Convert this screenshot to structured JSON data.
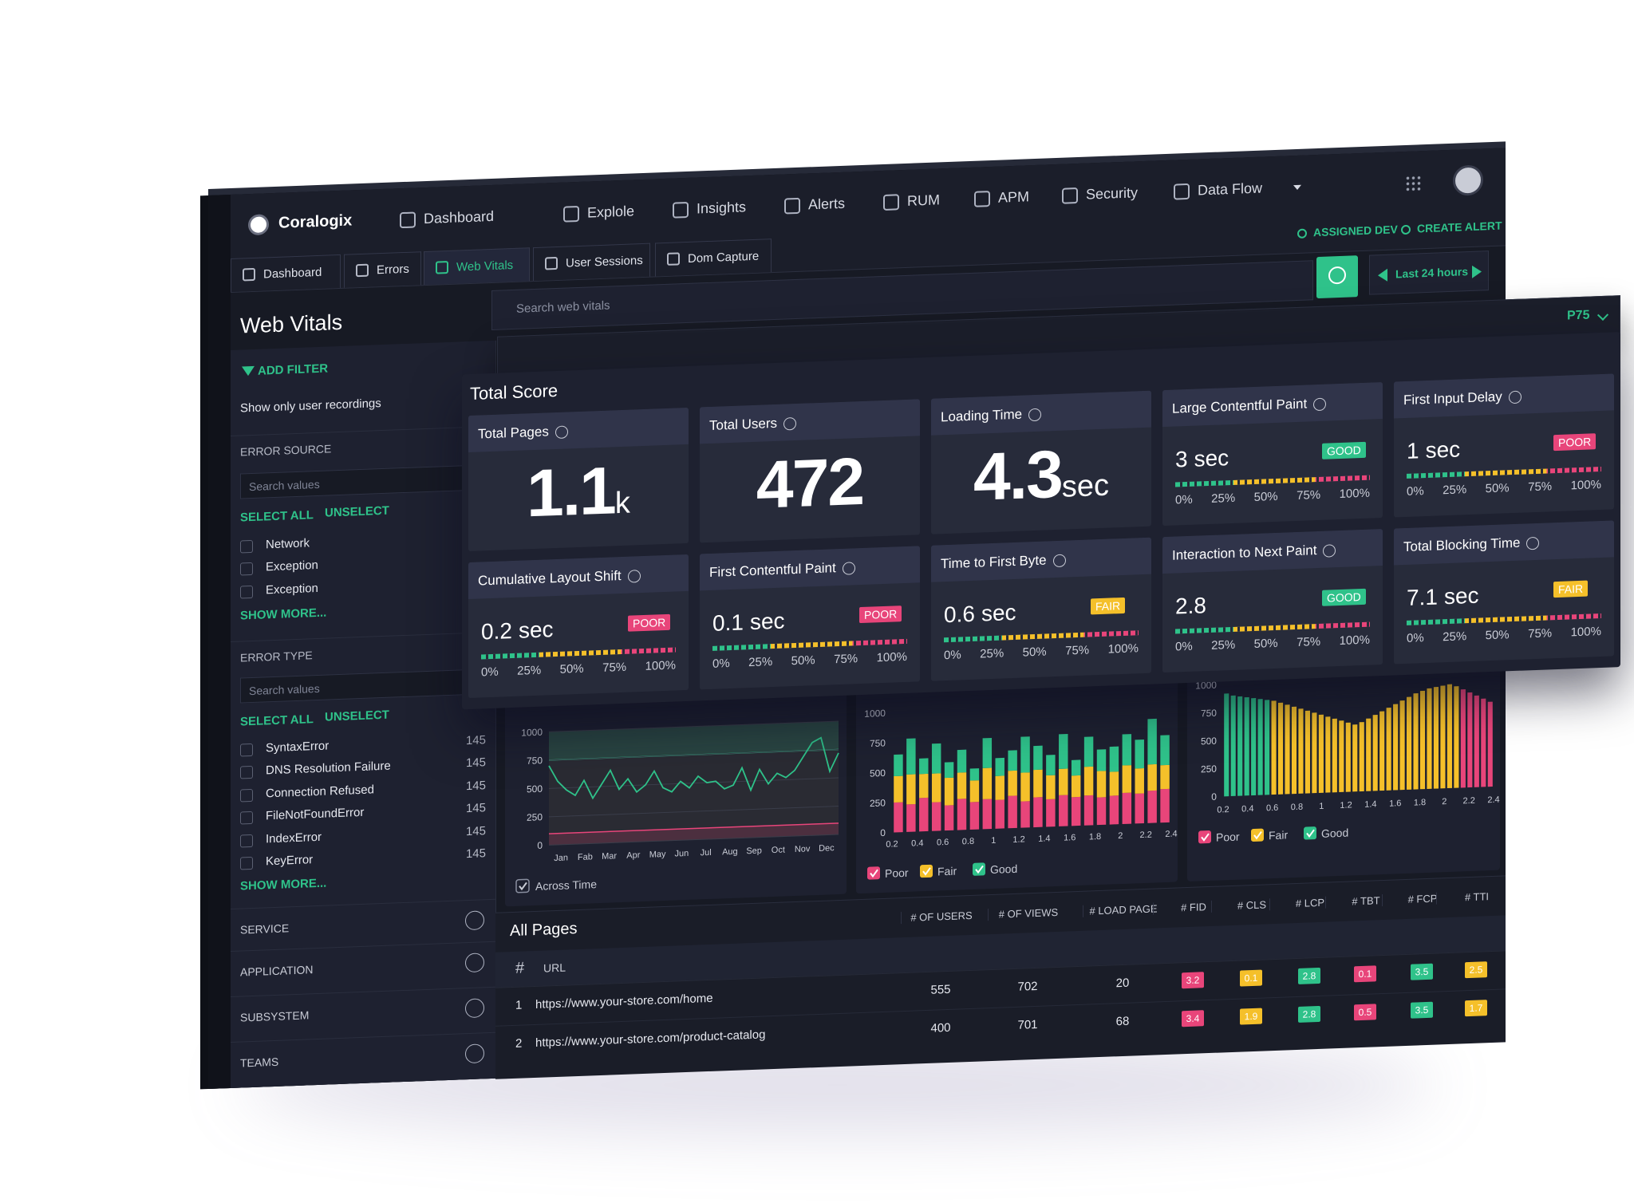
{
  "nav": {
    "brand": "Coralogix",
    "items": [
      "Dashboard",
      "Explole",
      "Insights",
      "Alerts",
      "RUM",
      "APM",
      "Security",
      "Data Flow"
    ],
    "actions": [
      "ASSIGNED DEV",
      "CREATE ALERT"
    ]
  },
  "tabs": [
    "Dashboard",
    "Errors",
    "Web Vitals",
    "User Sessions",
    "Dom Capture"
  ],
  "time_range": "Last 24 hours",
  "page_title": "Web Vitals",
  "search_placeholder": "Search web vitals",
  "percentile": "P75",
  "sidebar": {
    "add_filter": "ADD FILTER",
    "recordings": "Show only user recordings",
    "error_source": {
      "title": "ERROR SOURCE",
      "search": "Search values",
      "select_all": "SELECT ALL",
      "unselect": "UNSELECT",
      "options": [
        "Network",
        "Exception",
        "Exception"
      ],
      "show_more": "SHOW MORE..."
    },
    "error_type": {
      "title": "ERROR TYPE",
      "search": "Search values",
      "select_all": "SELECT ALL",
      "unselect": "UNSELECT",
      "options": [
        {
          "label": "SyntaxError",
          "count": 145
        },
        {
          "label": "DNS Resolution Failure",
          "count": 145
        },
        {
          "label": "Connection Refused",
          "count": 145
        },
        {
          "label": "FileNotFoundError",
          "count": 145
        },
        {
          "label": "IndexError",
          "count": 145
        },
        {
          "label": "KeyError",
          "count": 145
        }
      ],
      "show_more": "SHOW MORE..."
    },
    "sections": [
      "SERVICE",
      "APPLICATION",
      "SUBSYSTEM",
      "TEAMS"
    ]
  },
  "total_score": {
    "title": "Total Score",
    "scale": [
      "0%",
      "25%",
      "50%",
      "75%",
      "100%"
    ],
    "status_colors": {
      "GOOD": "#2fc28a",
      "FAIR": "#f5c02a",
      "POOR": "#e8457a"
    },
    "tiles": [
      {
        "title": "Total Pages",
        "value": 1.1,
        "unit": "k"
      },
      {
        "title": "Total Users",
        "value": 472
      },
      {
        "title": "Loading Time",
        "value": 4.3,
        "unit": "sec"
      },
      {
        "title": "Large Contentful Paint",
        "value": 3,
        "unit": "sec",
        "status": "GOOD"
      },
      {
        "title": "First Input Delay",
        "value": 1,
        "unit": "sec",
        "status": "POOR"
      },
      {
        "title": "Cumulative Layout Shift",
        "value": 0.2,
        "unit": "sec",
        "status": "POOR"
      },
      {
        "title": "First Contentful Paint",
        "value": 0.1,
        "unit": "sec",
        "status": "POOR"
      },
      {
        "title": "Time to First Byte",
        "value": 0.6,
        "unit": "sec",
        "status": "FAIR"
      },
      {
        "title": "Interaction to Next Paint",
        "value": 2.8,
        "status": "GOOD"
      },
      {
        "title": "Total Blocking Time",
        "value": 7.1,
        "unit": "sec",
        "status": "FAIR"
      }
    ]
  },
  "charts": [
    {
      "type": "line",
      "ylim": [
        0,
        1000
      ],
      "yticks": [
        0,
        250,
        500,
        750,
        1000
      ],
      "grid": true,
      "color": "#2fc28a",
      "categories": [
        "Jan",
        "Fab",
        "Mar",
        "Apr",
        "May",
        "Jun",
        "Jul",
        "Aug",
        "Sep",
        "Oct",
        "Nov",
        "Dec"
      ],
      "values": [
        700,
        560,
        480,
        430,
        560,
        400,
        520,
        640,
        470,
        560,
        440,
        500,
        620,
        470,
        430,
        520,
        460,
        560,
        500,
        510,
        440,
        470,
        620,
        420,
        600,
        470,
        560,
        520,
        580,
        700,
        820,
        860,
        560,
        720
      ],
      "reference_lines": [
        {
          "value": 750,
          "color": "#2fc28a"
        },
        {
          "value": 100,
          "color": "#e8457a"
        }
      ],
      "toggle": "Across Time"
    },
    {
      "type": "stacked_bar",
      "ylim": [
        0,
        1000
      ],
      "yticks": [
        0,
        250,
        500,
        750,
        1000
      ],
      "xlim": [
        0.2,
        2.4
      ],
      "xticks": [
        0.2,
        0.4,
        0.6,
        0.8,
        1,
        1.2,
        1.4,
        1.6,
        1.8,
        2,
        2.2,
        2.4
      ],
      "series": [
        {
          "name": "Poor",
          "color": "#e8457a",
          "values": [
            250,
            230,
            280,
            240,
            210,
            260,
            230,
            250,
            240,
            270,
            220,
            250,
            230,
            260,
            240,
            250,
            230,
            240,
            260,
            250,
            270,
            280
          ]
        },
        {
          "name": "Fair",
          "color": "#f5c02a",
          "values": [
            220,
            250,
            200,
            240,
            230,
            220,
            180,
            260,
            200,
            210,
            240,
            230,
            200,
            220,
            180,
            240,
            220,
            200,
            230,
            210,
            220,
            200
          ]
        },
        {
          "name": "Good",
          "color": "#2fc28a",
          "values": [
            180,
            300,
            130,
            250,
            130,
            190,
            100,
            250,
            150,
            170,
            300,
            200,
            170,
            290,
            130,
            250,
            180,
            210,
            260,
            240,
            380,
            250
          ]
        }
      ]
    },
    {
      "type": "bar",
      "ylim": [
        0,
        1000
      ],
      "yticks": [
        0,
        250,
        500,
        750,
        1000
      ],
      "xlim": [
        0.2,
        2.4
      ],
      "xticks": [
        0.2,
        0.4,
        0.6,
        0.8,
        1,
        1.2,
        1.4,
        1.6,
        1.8,
        2,
        2.2,
        2.4
      ],
      "series": [
        {
          "name": "Poor",
          "color": "#e8457a",
          "values": [
            null,
            null,
            null,
            null,
            null,
            null,
            null,
            null,
            null,
            null,
            null,
            null,
            null,
            null,
            null,
            null,
            null,
            null,
            null,
            null,
            null,
            null,
            null,
            null,
            null,
            null,
            null,
            null,
            null,
            null,
            null,
            null,
            null,
            null,
            null,
            880,
            850,
            820,
            790,
            760
          ]
        },
        {
          "name": "Fair",
          "color": "#f5c02a",
          "values": [
            null,
            null,
            null,
            null,
            null,
            null,
            null,
            840,
            820,
            800,
            780,
            760,
            740,
            720,
            700,
            680,
            660,
            640,
            620,
            600,
            620,
            650,
            680,
            710,
            740,
            770,
            800,
            830,
            860,
            880,
            900,
            910,
            920,
            930,
            910,
            null,
            null,
            null,
            null,
            null
          ]
        },
        {
          "name": "Good",
          "color": "#2fc28a",
          "values": [
            920,
            900,
            890,
            880,
            870,
            860,
            850,
            null,
            null,
            null,
            null,
            null,
            null,
            null,
            null,
            null,
            null,
            null,
            null,
            null,
            null,
            null,
            null,
            null,
            null,
            null,
            null,
            null,
            null,
            null,
            null,
            null,
            null,
            null,
            null,
            null,
            null,
            null,
            null,
            null
          ]
        }
      ]
    }
  ],
  "table": {
    "title": "All Pages",
    "columns": [
      "#",
      "URL",
      "# OF USERS",
      "# OF VIEWS",
      "# LOAD PAGE",
      "# FID",
      "# CLS",
      "# LCP",
      "# TBT",
      "# FCP",
      "# TTI"
    ],
    "metric_colors": [
      "#e8457a",
      "#f5c02a",
      "#2fc28a",
      "#e8457a",
      "#2fc28a",
      "#f5c02a"
    ],
    "rows": [
      [
        1,
        "https://www.your-store.com/home",
        555,
        702,
        20,
        3.2,
        0.1,
        2.8,
        0.1,
        3.5,
        2.5
      ],
      [
        2,
        "https://www.your-store.com/product-catalog",
        400,
        701,
        68,
        3.4,
        1.9,
        2.8,
        0.5,
        3.5,
        1.7
      ]
    ]
  }
}
